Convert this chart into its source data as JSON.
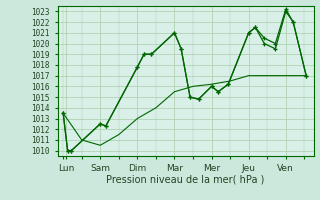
{
  "background_color": "#cce8dd",
  "plot_bg_color": "#d8f0e8",
  "grid_color": "#aaccaa",
  "line_color": "#006600",
  "xlabel": "Pression niveau de la mer( hPa )",
  "ylim": [
    1009.5,
    1023.5
  ],
  "yticks": [
    1010,
    1011,
    1012,
    1013,
    1014,
    1015,
    1016,
    1017,
    1018,
    1019,
    1020,
    1021,
    1022,
    1023
  ],
  "xtick_labels": [
    "Lun",
    "Sam",
    "Dim",
    "Mar",
    "Mer",
    "Jeu",
    "Ven"
  ],
  "xtick_positions": [
    0.08,
    1.0,
    2.0,
    3.0,
    4.0,
    5.0,
    6.0
  ],
  "line1_x": [
    0.0,
    0.12,
    0.22,
    1.0,
    1.15,
    2.0,
    2.18,
    2.38,
    3.0,
    3.18,
    3.42,
    3.65,
    4.0,
    4.18,
    4.45,
    5.0,
    5.18,
    5.42,
    5.72,
    6.0,
    6.2,
    6.55
  ],
  "line1_y": [
    1013.5,
    1010.0,
    1010.0,
    1012.5,
    1012.3,
    1017.8,
    1019.0,
    1019.0,
    1021.0,
    1019.5,
    1015.0,
    1014.8,
    1016.0,
    1015.5,
    1016.2,
    1021.0,
    1021.5,
    1020.0,
    1019.5,
    1023.0,
    1022.0,
    1017.0
  ],
  "line2_x": [
    0.0,
    0.12,
    0.22,
    1.0,
    1.15,
    2.0,
    2.18,
    2.38,
    3.0,
    3.18,
    3.42,
    3.65,
    4.0,
    4.18,
    4.45,
    5.0,
    5.18,
    5.42,
    5.72,
    6.0,
    6.2,
    6.55
  ],
  "line2_y": [
    1013.5,
    1010.0,
    1010.0,
    1012.5,
    1012.3,
    1017.8,
    1019.0,
    1019.0,
    1021.0,
    1019.5,
    1015.0,
    1014.8,
    1016.0,
    1015.5,
    1016.2,
    1021.0,
    1021.5,
    1020.5,
    1020.0,
    1023.2,
    1022.0,
    1017.0
  ],
  "line3_x": [
    0.0,
    0.5,
    1.0,
    1.5,
    2.0,
    2.5,
    3.0,
    3.5,
    4.0,
    4.5,
    5.0,
    5.5,
    6.0,
    6.55
  ],
  "line3_y": [
    1013.5,
    1011.0,
    1010.5,
    1011.5,
    1013.0,
    1014.0,
    1015.5,
    1016.0,
    1016.2,
    1016.5,
    1017.0,
    1017.0,
    1017.0,
    1017.0
  ]
}
